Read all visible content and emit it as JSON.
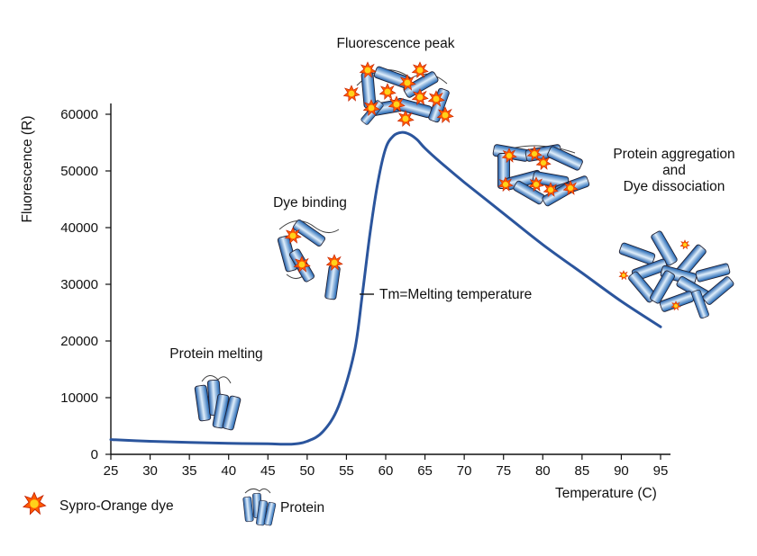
{
  "chart_data": {
    "type": "line",
    "title": "",
    "xlabel": "Temperature (C)",
    "ylabel": "Fluorescence (R)",
    "xlim": [
      25,
      95
    ],
    "ylim": [
      0,
      60000
    ],
    "xticks": [
      "25",
      "30",
      "35",
      "40",
      "45",
      "50",
      "55",
      "60",
      "65",
      "70",
      "75",
      "80",
      "85",
      "90",
      "95"
    ],
    "yticks": [
      "0",
      "10000",
      "20000",
      "30000",
      "40000",
      "50000",
      "60000"
    ],
    "grid": false,
    "series": [
      {
        "color": "#2b559d",
        "x": [
          25,
          30,
          35,
          40,
          45,
          48,
          50,
          52,
          54,
          56,
          57,
          58,
          59,
          60,
          61,
          62,
          63,
          64,
          65,
          67,
          70,
          75,
          80,
          85,
          90,
          95
        ],
        "y": [
          2600,
          2300,
          2100,
          1950,
          1850,
          1800,
          2300,
          4000,
          8500,
          18000,
          28000,
          39000,
          48000,
          54000,
          56200,
          56800,
          56500,
          55500,
          54000,
          51500,
          48000,
          42500,
          37000,
          32000,
          27000,
          22500
        ]
      }
    ],
    "annotations": {
      "fluorescence_peak": "Fluorescence peak",
      "dye_binding": "Dye binding",
      "protein_melting": "Protein melting",
      "tm": "Tm=Melting temperature",
      "aggregation_line1": "Protein aggregation",
      "aggregation_line2": "and",
      "aggregation_line3": "Dye dissociation"
    },
    "legend": {
      "dye": "Sypro-Orange dye",
      "protein": "Protein"
    }
  }
}
